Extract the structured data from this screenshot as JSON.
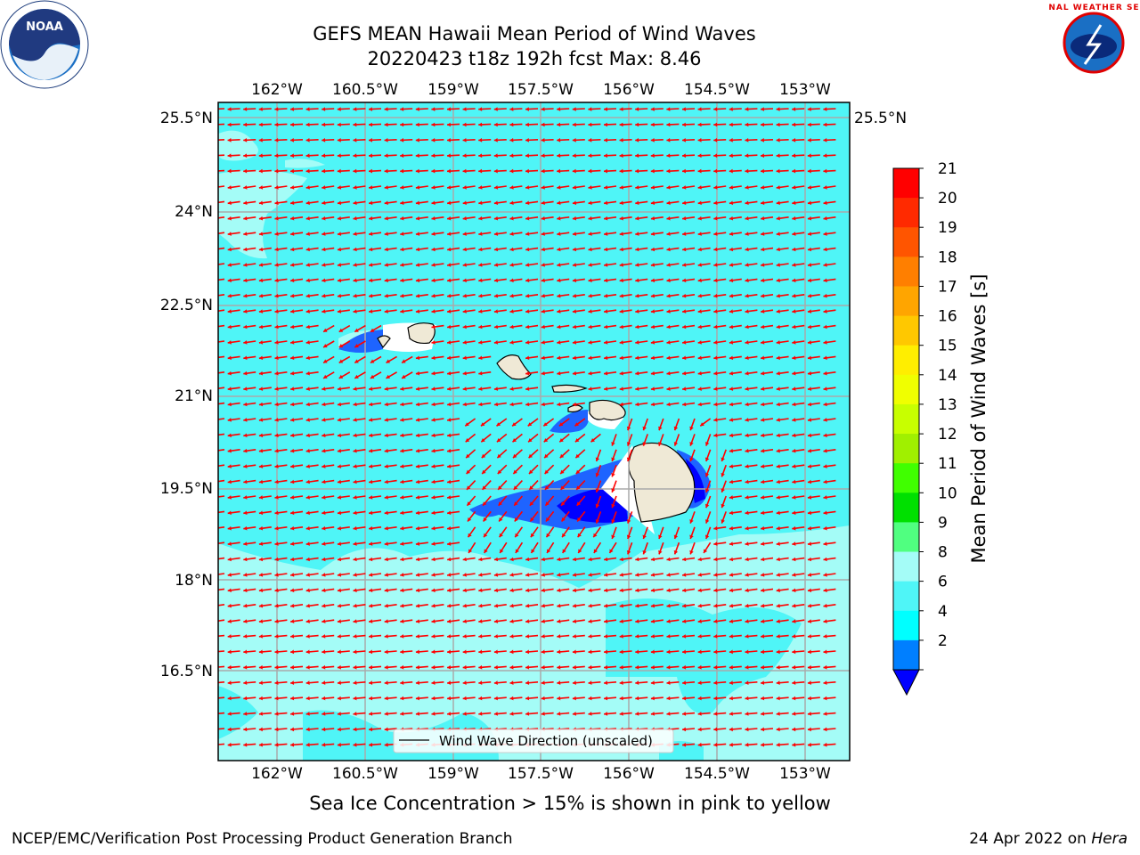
{
  "header": {
    "title_line1": "GEFS MEAN Hawaii Mean Period of Wind Waves",
    "title_line2": "20220423 t18z 192h fcst   Max: 8.46"
  },
  "logos": {
    "left": "noaa-logo",
    "right": "national-weather-service-logo",
    "left_text": "NOAA",
    "right_text": "NATIONAL WEATHER SERVICE"
  },
  "map": {
    "lon_labels": [
      "162°W",
      "160.5°W",
      "159°W",
      "157.5°W",
      "156°W",
      "154.5°W",
      "153°W"
    ],
    "lat_labels": [
      "25.5°N",
      "24°N",
      "22.5°N",
      "21°N",
      "19.5°N",
      "18°N",
      "16.5°N"
    ],
    "legend_label": "Wind Wave Direction (unscaled)",
    "arrow_color": "#ff0000",
    "colors": {
      "bg": "#4ff5f7",
      "light": "#a4fcf7",
      "blue": "#1e64ff",
      "deep": "#0000ff",
      "land": "#efe9d6"
    }
  },
  "colorbar": {
    "label": "Mean Period of Wind Waves [s]",
    "ticks": [
      "21",
      "20",
      "19",
      "18",
      "17",
      "16",
      "15",
      "14",
      "13",
      "12",
      "11",
      "10",
      "9",
      "8",
      "6",
      "4",
      "2"
    ],
    "colors": [
      "#ff0000",
      "#ff2a00",
      "#ff5500",
      "#ff7f00",
      "#ffa500",
      "#ffc800",
      "#ffee00",
      "#f0ff00",
      "#c8ff00",
      "#a0f000",
      "#40ff00",
      "#00e000",
      "#50ff80",
      "#a4fcf7",
      "#4ff5f7",
      "#00ffff",
      "#007fff"
    ],
    "extend_color": "#0000ff"
  },
  "footer": {
    "subtitle": "Sea Ice Concentration > 15% is shown in pink to yellow",
    "left": "NCEP/EMC/Verification Post Processing Product Generation Branch",
    "right_date": "24 Apr 2022 on ",
    "right_host": "Hera"
  }
}
